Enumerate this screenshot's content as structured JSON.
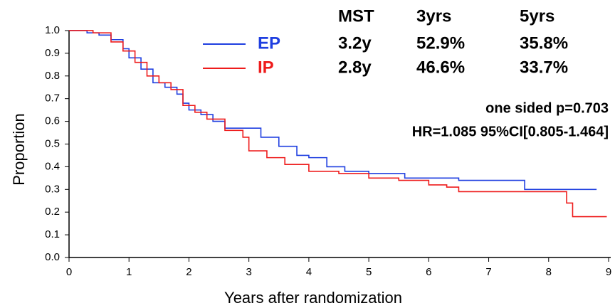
{
  "chart_data": {
    "type": "step",
    "xlabel": "Years after randomization",
    "ylabel": "Proportion",
    "xlim": [
      0,
      9
    ],
    "ylim": [
      0,
      1.02
    ],
    "xticks": [
      0,
      1,
      2,
      3,
      4,
      5,
      6,
      7,
      8,
      9
    ],
    "yticks": [
      {
        "value": 0,
        "label": "0.0"
      },
      0.1,
      0.2,
      0.3,
      0.4,
      0.5,
      0.6,
      0.7,
      0.8,
      0.9,
      {
        "value": 1,
        "label": "1.0"
      }
    ],
    "series": [
      {
        "name": "EP",
        "color": "#1f3fe0",
        "x": [
          0,
          0.3,
          0.5,
          0.7,
          0.9,
          1.0,
          1.2,
          1.4,
          1.6,
          1.8,
          1.9,
          2.0,
          2.2,
          2.4,
          2.6,
          3.0,
          3.2,
          3.5,
          3.8,
          4.0,
          4.3,
          4.6,
          5.0,
          5.6,
          6.5,
          7.6,
          8.8
        ],
        "values": [
          1.0,
          0.99,
          0.98,
          0.96,
          0.92,
          0.88,
          0.83,
          0.77,
          0.75,
          0.72,
          0.68,
          0.65,
          0.63,
          0.6,
          0.57,
          0.57,
          0.53,
          0.49,
          0.45,
          0.44,
          0.4,
          0.38,
          0.37,
          0.35,
          0.34,
          0.3,
          0.3
        ]
      },
      {
        "name": "IP",
        "color": "#ee1c1c",
        "x": [
          0,
          0.4,
          0.7,
          0.9,
          1.1,
          1.3,
          1.5,
          1.7,
          1.9,
          2.1,
          2.3,
          2.6,
          2.9,
          3.0,
          3.3,
          3.6,
          4.0,
          4.5,
          5.0,
          5.5,
          6.0,
          6.3,
          6.5,
          8.3,
          8.4,
          8.97
        ],
        "values": [
          1.0,
          0.99,
          0.95,
          0.91,
          0.86,
          0.8,
          0.77,
          0.74,
          0.67,
          0.64,
          0.61,
          0.56,
          0.53,
          0.47,
          0.44,
          0.41,
          0.38,
          0.37,
          0.35,
          0.34,
          0.32,
          0.31,
          0.29,
          0.24,
          0.18,
          0.18
        ]
      }
    ],
    "summary_table": {
      "header": [
        "MST",
        "3yrs",
        "5yrs"
      ],
      "rows": [
        [
          "3.2y",
          "52.9%",
          "35.8%"
        ],
        [
          "2.8y",
          "46.6%",
          "33.7%"
        ]
      ]
    },
    "annotations": [
      "one sided p=0.703",
      "HR=1.085 95%CI[0.805-1.464]"
    ]
  }
}
